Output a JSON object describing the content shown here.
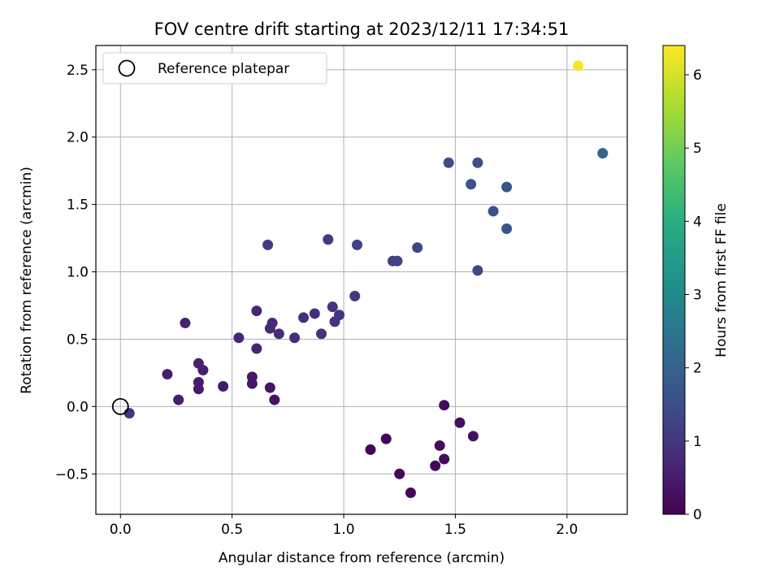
{
  "chart_data": {
    "type": "scatter",
    "title": "FOV centre drift starting at 2023/12/11 17:34:51",
    "xlabel": "Angular distance from reference (arcmin)",
    "ylabel": "Rotation from reference (arcmin)",
    "xlim": [
      -0.11,
      2.27
    ],
    "ylim": [
      -0.8,
      2.68
    ],
    "xticks": [
      0.0,
      0.5,
      1.0,
      1.5,
      2.0
    ],
    "xtick_labels": [
      "0.0",
      "0.5",
      "1.0",
      "1.5",
      "2.0"
    ],
    "yticks": [
      -0.5,
      0.0,
      0.5,
      1.0,
      1.5,
      2.0,
      2.5
    ],
    "ytick_labels": [
      "−0.5",
      "0.0",
      "0.5",
      "1.0",
      "1.5",
      "2.0",
      "2.5"
    ],
    "grid": true,
    "legend": {
      "placement": "upper-left",
      "entries": [
        "Reference platepar"
      ]
    },
    "reference_point": {
      "x": 0.0,
      "y": 0.0
    },
    "colorbar": {
      "label": "Hours from first FF file",
      "colormap": "viridis",
      "range": [
        0,
        6.4
      ],
      "ticks": [
        0,
        1,
        2,
        3,
        4,
        5,
        6
      ],
      "tick_labels": [
        "0",
        "1",
        "2",
        "3",
        "4",
        "5",
        "6"
      ]
    },
    "points": [
      {
        "x": 1.12,
        "y": -0.32,
        "c": 0.05
      },
      {
        "x": 1.19,
        "y": -0.24,
        "c": 0.07
      },
      {
        "x": 1.25,
        "y": -0.5,
        "c": 0.1
      },
      {
        "x": 1.3,
        "y": -0.64,
        "c": 0.12
      },
      {
        "x": 1.41,
        "y": -0.44,
        "c": 0.15
      },
      {
        "x": 1.43,
        "y": -0.29,
        "c": 0.17
      },
      {
        "x": 1.45,
        "y": -0.39,
        "c": 0.2
      },
      {
        "x": 1.45,
        "y": 0.01,
        "c": 0.22
      },
      {
        "x": 1.52,
        "y": -0.12,
        "c": 0.25
      },
      {
        "x": 1.58,
        "y": -0.22,
        "c": 0.27
      },
      {
        "x": 0.69,
        "y": 0.05,
        "c": 0.35
      },
      {
        "x": 0.67,
        "y": 0.14,
        "c": 0.38
      },
      {
        "x": 0.59,
        "y": 0.17,
        "c": 0.4
      },
      {
        "x": 0.59,
        "y": 0.22,
        "c": 0.42
      },
      {
        "x": 0.46,
        "y": 0.15,
        "c": 0.45
      },
      {
        "x": 0.35,
        "y": 0.13,
        "c": 0.47
      },
      {
        "x": 0.35,
        "y": 0.18,
        "c": 0.5
      },
      {
        "x": 0.26,
        "y": 0.05,
        "c": 0.52
      },
      {
        "x": 0.21,
        "y": 0.24,
        "c": 0.55
      },
      {
        "x": 0.37,
        "y": 0.27,
        "c": 0.57
      },
      {
        "x": 0.35,
        "y": 0.32,
        "c": 0.6
      },
      {
        "x": 0.29,
        "y": 0.62,
        "c": 0.62
      },
      {
        "x": 0.61,
        "y": 0.43,
        "c": 0.65
      },
      {
        "x": 0.53,
        "y": 0.51,
        "c": 0.68
      },
      {
        "x": 0.61,
        "y": 0.71,
        "c": 0.7
      },
      {
        "x": 0.67,
        "y": 0.58,
        "c": 0.72
      },
      {
        "x": 0.68,
        "y": 0.62,
        "c": 0.75
      },
      {
        "x": 0.71,
        "y": 0.54,
        "c": 0.78
      },
      {
        "x": 0.78,
        "y": 0.51,
        "c": 0.8
      },
      {
        "x": 0.82,
        "y": 0.66,
        "c": 0.82
      },
      {
        "x": 0.87,
        "y": 0.69,
        "c": 0.85
      },
      {
        "x": 0.9,
        "y": 0.54,
        "c": 0.88
      },
      {
        "x": 0.95,
        "y": 0.74,
        "c": 0.9
      },
      {
        "x": 0.96,
        "y": 0.63,
        "c": 0.92
      },
      {
        "x": 0.98,
        "y": 0.68,
        "c": 0.95
      },
      {
        "x": 0.04,
        "y": -0.05,
        "c": 1.0
      },
      {
        "x": 1.05,
        "y": 0.82,
        "c": 1.05
      },
      {
        "x": 0.66,
        "y": 1.2,
        "c": 1.1
      },
      {
        "x": 0.93,
        "y": 1.24,
        "c": 1.15
      },
      {
        "x": 1.06,
        "y": 1.2,
        "c": 1.2
      },
      {
        "x": 1.22,
        "y": 1.08,
        "c": 1.25
      },
      {
        "x": 1.24,
        "y": 1.08,
        "c": 1.3
      },
      {
        "x": 1.33,
        "y": 1.18,
        "c": 1.35
      },
      {
        "x": 1.6,
        "y": 1.01,
        "c": 1.4
      },
      {
        "x": 1.47,
        "y": 1.81,
        "c": 1.5
      },
      {
        "x": 1.57,
        "y": 1.65,
        "c": 1.55
      },
      {
        "x": 1.6,
        "y": 1.81,
        "c": 1.55
      },
      {
        "x": 1.67,
        "y": 1.45,
        "c": 1.6
      },
      {
        "x": 1.73,
        "y": 1.63,
        "c": 1.62
      },
      {
        "x": 1.73,
        "y": 1.32,
        "c": 1.65
      },
      {
        "x": 2.16,
        "y": 1.88,
        "c": 2.05
      },
      {
        "x": 2.05,
        "y": 2.53,
        "c": 6.35
      }
    ]
  }
}
